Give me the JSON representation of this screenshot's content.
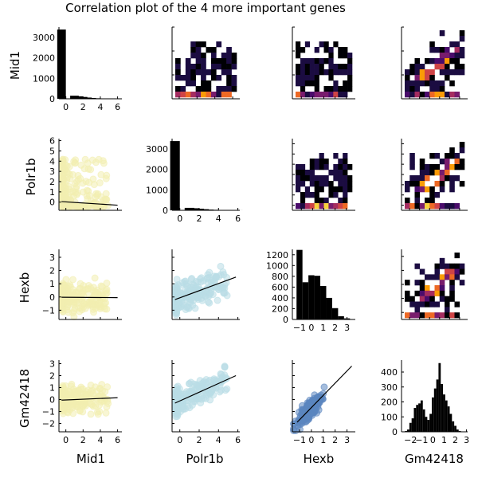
{
  "title": "Correlation plot of the 4 more important genes",
  "variables": [
    "Mid1",
    "Polr1b",
    "Hexb",
    "Gm42418"
  ],
  "colors": {
    "scatter": [
      "#f2eeb0",
      "#b9dde6",
      "#5b86c0"
    ],
    "heatmap": [
      "#000004",
      "#1b0c41",
      "#4a0c6b",
      "#781c6d",
      "#a52c60",
      "#cf4446",
      "#ed6925",
      "#fb9b06",
      "#f7d13d",
      "#fcffa4"
    ],
    "hist": "#000000",
    "fit": "#000000"
  },
  "chart_data": [
    {
      "type": "histogram",
      "row": 1,
      "col": 1,
      "var": "Mid1",
      "x": [
        -0.5,
        0.5,
        1.0,
        1.5,
        2.0,
        2.5,
        3.0,
        3.5,
        4.0,
        4.5,
        5.0,
        5.5,
        6.0
      ],
      "values": [
        3380,
        0,
        150,
        120,
        90,
        60,
        40,
        25,
        15,
        10,
        6,
        3,
        2
      ],
      "xlim": [
        -0.8,
        6.5
      ],
      "ylim": [
        0,
        3500
      ],
      "xticks": [
        0,
        2,
        4,
        6
      ],
      "yticks": [
        0,
        1000,
        2000,
        3000
      ]
    },
    {
      "type": "histogram",
      "row": 2,
      "col": 2,
      "var": "Polr1b",
      "x": [
        -0.5,
        0.5,
        1.0,
        1.5,
        2.0,
        2.5,
        3.0,
        3.5,
        4.0,
        4.5,
        5.0,
        5.5,
        6.0
      ],
      "values": [
        3380,
        0,
        120,
        100,
        80,
        55,
        35,
        25,
        15,
        10,
        6,
        3,
        2
      ],
      "xlim": [
        -0.8,
        6.2
      ],
      "ylim": [
        0,
        3500
      ],
      "xticks": [
        0,
        2,
        4,
        6
      ],
      "yticks": [
        0,
        1000,
        2000,
        3000
      ]
    },
    {
      "type": "histogram",
      "row": 3,
      "col": 3,
      "var": "Hexb",
      "x": [
        -1.0,
        -0.5,
        0.0,
        0.5,
        1.0,
        1.5,
        2.0,
        2.5,
        3.0
      ],
      "values": [
        1290,
        690,
        820,
        810,
        620,
        400,
        210,
        60,
        20
      ],
      "xlim": [
        -1.6,
        3.7
      ],
      "ylim": [
        0,
        1300
      ],
      "xticks": [
        -1,
        0,
        1,
        2,
        3
      ],
      "yticks": [
        0,
        200,
        400,
        600,
        800,
        1000,
        1200
      ]
    },
    {
      "type": "histogram",
      "row": 4,
      "col": 4,
      "var": "Gm42418",
      "x": [
        -2.4,
        -2.2,
        -2.0,
        -1.8,
        -1.6,
        -1.4,
        -1.2,
        -1.0,
        -0.8,
        -0.6,
        -0.4,
        -0.2,
        0.0,
        0.2,
        0.4,
        0.6,
        0.8,
        1.0,
        1.2,
        1.4,
        1.6,
        1.8,
        2.0,
        2.2,
        2.4,
        2.6
      ],
      "values": [
        5,
        15,
        60,
        90,
        160,
        180,
        190,
        210,
        150,
        100,
        80,
        120,
        230,
        290,
        350,
        460,
        320,
        250,
        210,
        170,
        120,
        70,
        40,
        15,
        5,
        2
      ],
      "xlim": [
        -2.8,
        3.1
      ],
      "ylim": [
        0,
        480
      ],
      "xticks": [
        -2,
        -1,
        0,
        1,
        2,
        3
      ],
      "yticks": [
        0,
        100,
        200,
        300,
        400
      ]
    },
    {
      "type": "scatter",
      "row": 2,
      "col": 1,
      "x_var": "Mid1",
      "y_var": "Polr1b",
      "fit": {
        "x": [
          -0.5,
          6.0
        ],
        "y": [
          0.05,
          -0.3
        ]
      },
      "xlim": [
        -0.8,
        6.5
      ],
      "ylim": [
        -0.8,
        6.2
      ],
      "xticks": [
        0,
        2,
        4,
        6
      ],
      "yticks": [
        0,
        1,
        2,
        3,
        4,
        5,
        6
      ]
    },
    {
      "type": "scatter",
      "row": 3,
      "col": 1,
      "x_var": "Mid1",
      "y_var": "Hexb",
      "fit": {
        "x": [
          -0.5,
          6.0
        ],
        "y": [
          -0.02,
          -0.05
        ]
      },
      "xlim": [
        -0.8,
        6.5
      ],
      "ylim": [
        -1.7,
        3.6
      ],
      "xticks": [
        0,
        2,
        4,
        6
      ],
      "yticks": [
        -1,
        0,
        1,
        2,
        3
      ]
    },
    {
      "type": "scatter",
      "row": 4,
      "col": 1,
      "x_var": "Mid1",
      "y_var": "Gm42418",
      "fit": {
        "x": [
          -0.5,
          6.0
        ],
        "y": [
          -0.05,
          0.15
        ]
      },
      "xlim": [
        -0.8,
        6.5
      ],
      "ylim": [
        -2.7,
        3.3
      ],
      "xticks": [
        0,
        2,
        4,
        6
      ],
      "yticks": [
        -2,
        -1,
        0,
        1,
        2,
        3
      ]
    },
    {
      "type": "scatter",
      "row": 3,
      "col": 2,
      "x_var": "Polr1b",
      "y_var": "Hexb",
      "fit": {
        "x": [
          -0.5,
          5.8
        ],
        "y": [
          -0.2,
          1.5
        ]
      },
      "xlim": [
        -0.8,
        6.2
      ],
      "ylim": [
        -1.7,
        3.6
      ],
      "xticks": [
        0,
        2,
        4,
        6
      ],
      "yticks": [
        -1,
        0,
        1,
        2,
        3
      ]
    },
    {
      "type": "scatter",
      "row": 4,
      "col": 2,
      "x_var": "Polr1b",
      "y_var": "Gm42418",
      "fit": {
        "x": [
          -0.5,
          5.8
        ],
        "y": [
          -0.3,
          2.0
        ]
      },
      "xlim": [
        -0.8,
        6.2
      ],
      "ylim": [
        -2.7,
        3.3
      ],
      "xticks": [
        0,
        2,
        4,
        6
      ],
      "yticks": [
        -2,
        -1,
        0,
        1,
        2,
        3
      ]
    },
    {
      "type": "scatter",
      "row": 4,
      "col": 3,
      "x_var": "Hexb",
      "y_var": "Gm42418",
      "fit": {
        "x": [
          -1.2,
          3.4
        ],
        "y": [
          -1.9,
          2.8
        ]
      },
      "xlim": [
        -1.6,
        3.7
      ],
      "ylim": [
        -2.7,
        3.3
      ],
      "xticks": [
        -1,
        0,
        1,
        2,
        3
      ],
      "yticks": [
        -2,
        -1,
        0,
        1,
        2,
        3
      ]
    },
    {
      "type": "heatmap",
      "row": 1,
      "col": 2,
      "x_var": "Polr1b",
      "y_var": "Mid1"
    },
    {
      "type": "heatmap",
      "row": 1,
      "col": 3,
      "x_var": "Hexb",
      "y_var": "Mid1"
    },
    {
      "type": "heatmap",
      "row": 1,
      "col": 4,
      "x_var": "Gm42418",
      "y_var": "Mid1"
    },
    {
      "type": "heatmap",
      "row": 2,
      "col": 3,
      "x_var": "Hexb",
      "y_var": "Polr1b"
    },
    {
      "type": "heatmap",
      "row": 2,
      "col": 4,
      "x_var": "Gm42418",
      "y_var": "Polr1b"
    },
    {
      "type": "heatmap",
      "row": 3,
      "col": 4,
      "x_var": "Gm42418",
      "y_var": "Hexb"
    }
  ]
}
